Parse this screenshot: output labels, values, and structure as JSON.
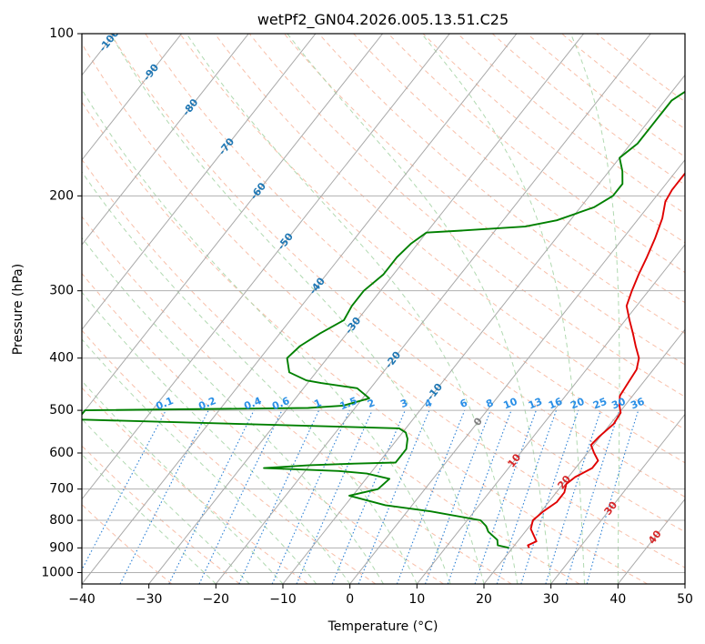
{
  "chart_data": {
    "type": "line",
    "title": "wetPf2_GN04.2026.005.13.51.C25",
    "xlabel": "Temperature (°C)",
    "ylabel": "Pressure (hPa)",
    "xlim": [
      -40,
      50
    ],
    "ylim": [
      1050,
      100
    ],
    "y_scale": "log",
    "x_ticks": [
      "−40",
      "−30",
      "−20",
      "−10",
      "0",
      "10",
      "20",
      "30",
      "40",
      "50"
    ],
    "y_ticks": [
      "1000",
      "900",
      "800",
      "700",
      "600",
      "500",
      "400",
      "300",
      "200",
      "100"
    ],
    "grid": true,
    "series": [
      {
        "role": "temperature",
        "color": "#e00000",
        "points": [
          [
            22.5,
            900
          ],
          [
            22.0,
            890
          ],
          [
            22.8,
            875
          ],
          [
            21.8,
            855
          ],
          [
            20.5,
            830
          ],
          [
            19.8,
            800
          ],
          [
            20.3,
            770
          ],
          [
            21.2,
            740
          ],
          [
            21.2,
            710
          ],
          [
            20.5,
            685
          ],
          [
            21.0,
            665
          ],
          [
            22.5,
            640
          ],
          [
            22.5,
            620
          ],
          [
            21.0,
            600
          ],
          [
            19.6,
            580
          ],
          [
            19.8,
            560
          ],
          [
            20.5,
            530
          ],
          [
            20.2,
            505
          ],
          [
            19.2,
            490
          ],
          [
            18.1,
            470
          ],
          [
            17.8,
            445
          ],
          [
            17.5,
            420
          ],
          [
            16.5,
            400
          ],
          [
            14.6,
            380
          ],
          [
            12.7,
            360
          ],
          [
            10.6,
            340
          ],
          [
            8.5,
            320
          ],
          [
            7.5,
            300
          ],
          [
            6.6,
            280
          ],
          [
            5.8,
            260
          ],
          [
            4.8,
            240
          ],
          [
            3.5,
            220
          ],
          [
            2.0,
            205
          ],
          [
            1.6,
            195
          ],
          [
            1.6,
            180
          ],
          [
            1.6,
            165
          ],
          [
            1.9,
            155
          ],
          [
            3.0,
            145
          ],
          [
            4.8,
            138
          ],
          [
            5.2,
            130
          ],
          [
            4.8,
            125
          ],
          [
            4.0,
            117
          ],
          [
            3.4,
            110
          ],
          [
            3.0,
            105
          ],
          [
            3.2,
            100
          ]
        ]
      },
      {
        "role": "dewpoint",
        "color": "#008000",
        "points": [
          [
            19.5,
            900
          ],
          [
            17.5,
            890
          ],
          [
            16.8,
            870
          ],
          [
            14.5,
            840
          ],
          [
            13.5,
            820
          ],
          [
            12.0,
            800
          ],
          [
            3.5,
            770
          ],
          [
            -4.0,
            750
          ],
          [
            -10.5,
            720
          ],
          [
            -7.0,
            700
          ],
          [
            -6.5,
            670
          ],
          [
            -10.5,
            655
          ],
          [
            -15.0,
            648
          ],
          [
            -26.5,
            640
          ],
          [
            -20.0,
            632
          ],
          [
            -13.5,
            628
          ],
          [
            -7.5,
            625
          ],
          [
            -7.5,
            610
          ],
          [
            -7.5,
            590
          ],
          [
            -8.5,
            565
          ],
          [
            -9.5,
            550
          ],
          [
            -11.0,
            540
          ],
          [
            -60.0,
            520
          ],
          [
            -60.0,
            500
          ],
          [
            -27.0,
            495
          ],
          [
            -22.0,
            490
          ],
          [
            -19.0,
            475
          ],
          [
            -22.0,
            455
          ],
          [
            -28.0,
            445
          ],
          [
            -30.5,
            440
          ],
          [
            -34.0,
            425
          ],
          [
            -36.0,
            400
          ],
          [
            -35.5,
            380
          ],
          [
            -34.0,
            360
          ],
          [
            -32.0,
            340
          ],
          [
            -32.5,
            320
          ],
          [
            -32.5,
            300
          ],
          [
            -31.5,
            280
          ],
          [
            -31.5,
            260
          ],
          [
            -31.0,
            245
          ],
          [
            -30.0,
            234
          ],
          [
            -25.0,
            232
          ],
          [
            -16.0,
            228
          ],
          [
            -12.0,
            222
          ],
          [
            -8.0,
            210
          ],
          [
            -6.5,
            200
          ],
          [
            -6.5,
            190
          ],
          [
            -8.0,
            180
          ],
          [
            -10.0,
            170
          ],
          [
            -9.0,
            160
          ],
          [
            -9.0,
            150
          ],
          [
            -9.0,
            140
          ],
          [
            -9.0,
            133
          ],
          [
            -8.0,
            128
          ],
          [
            -5.0,
            122
          ],
          [
            -3.5,
            117
          ],
          [
            -3.0,
            112
          ],
          [
            -1.5,
            107
          ],
          [
            0.0,
            102
          ],
          [
            0.5,
            100
          ]
        ]
      }
    ],
    "isotherm_labels": [
      {
        "text": "0",
        "T": 0,
        "p": 525
      },
      {
        "text": "10",
        "T": 10,
        "p": 620
      },
      {
        "text": "20",
        "T": 20,
        "p": 680
      },
      {
        "text": "30",
        "T": 30,
        "p": 760
      },
      {
        "text": "40",
        "T": 40,
        "p": 860
      }
    ],
    "dry_adiabat_labels": [
      {
        "text": "-100",
        "T": -100,
        "p": 103
      },
      {
        "text": "-90",
        "T": -90,
        "p": 118
      },
      {
        "text": "-80",
        "T": -80,
        "p": 137
      },
      {
        "text": "-70",
        "T": -70,
        "p": 162
      },
      {
        "text": "-60",
        "T": -60,
        "p": 196
      },
      {
        "text": "-50",
        "T": -50,
        "p": 243
      },
      {
        "text": "-40",
        "T": -40,
        "p": 294
      },
      {
        "text": "-30",
        "T": -30,
        "p": 348
      },
      {
        "text": "-20",
        "T": -20,
        "p": 403
      },
      {
        "text": "-10",
        "T": -10,
        "p": 462
      }
    ],
    "mixing_ratio_labels": [
      "0.1",
      "0.2",
      "0.4",
      "0.6",
      "1",
      "1.5",
      "2",
      "3",
      "4",
      "6",
      "8",
      "10",
      "13",
      "16",
      "20",
      "25",
      "30",
      "36"
    ]
  }
}
